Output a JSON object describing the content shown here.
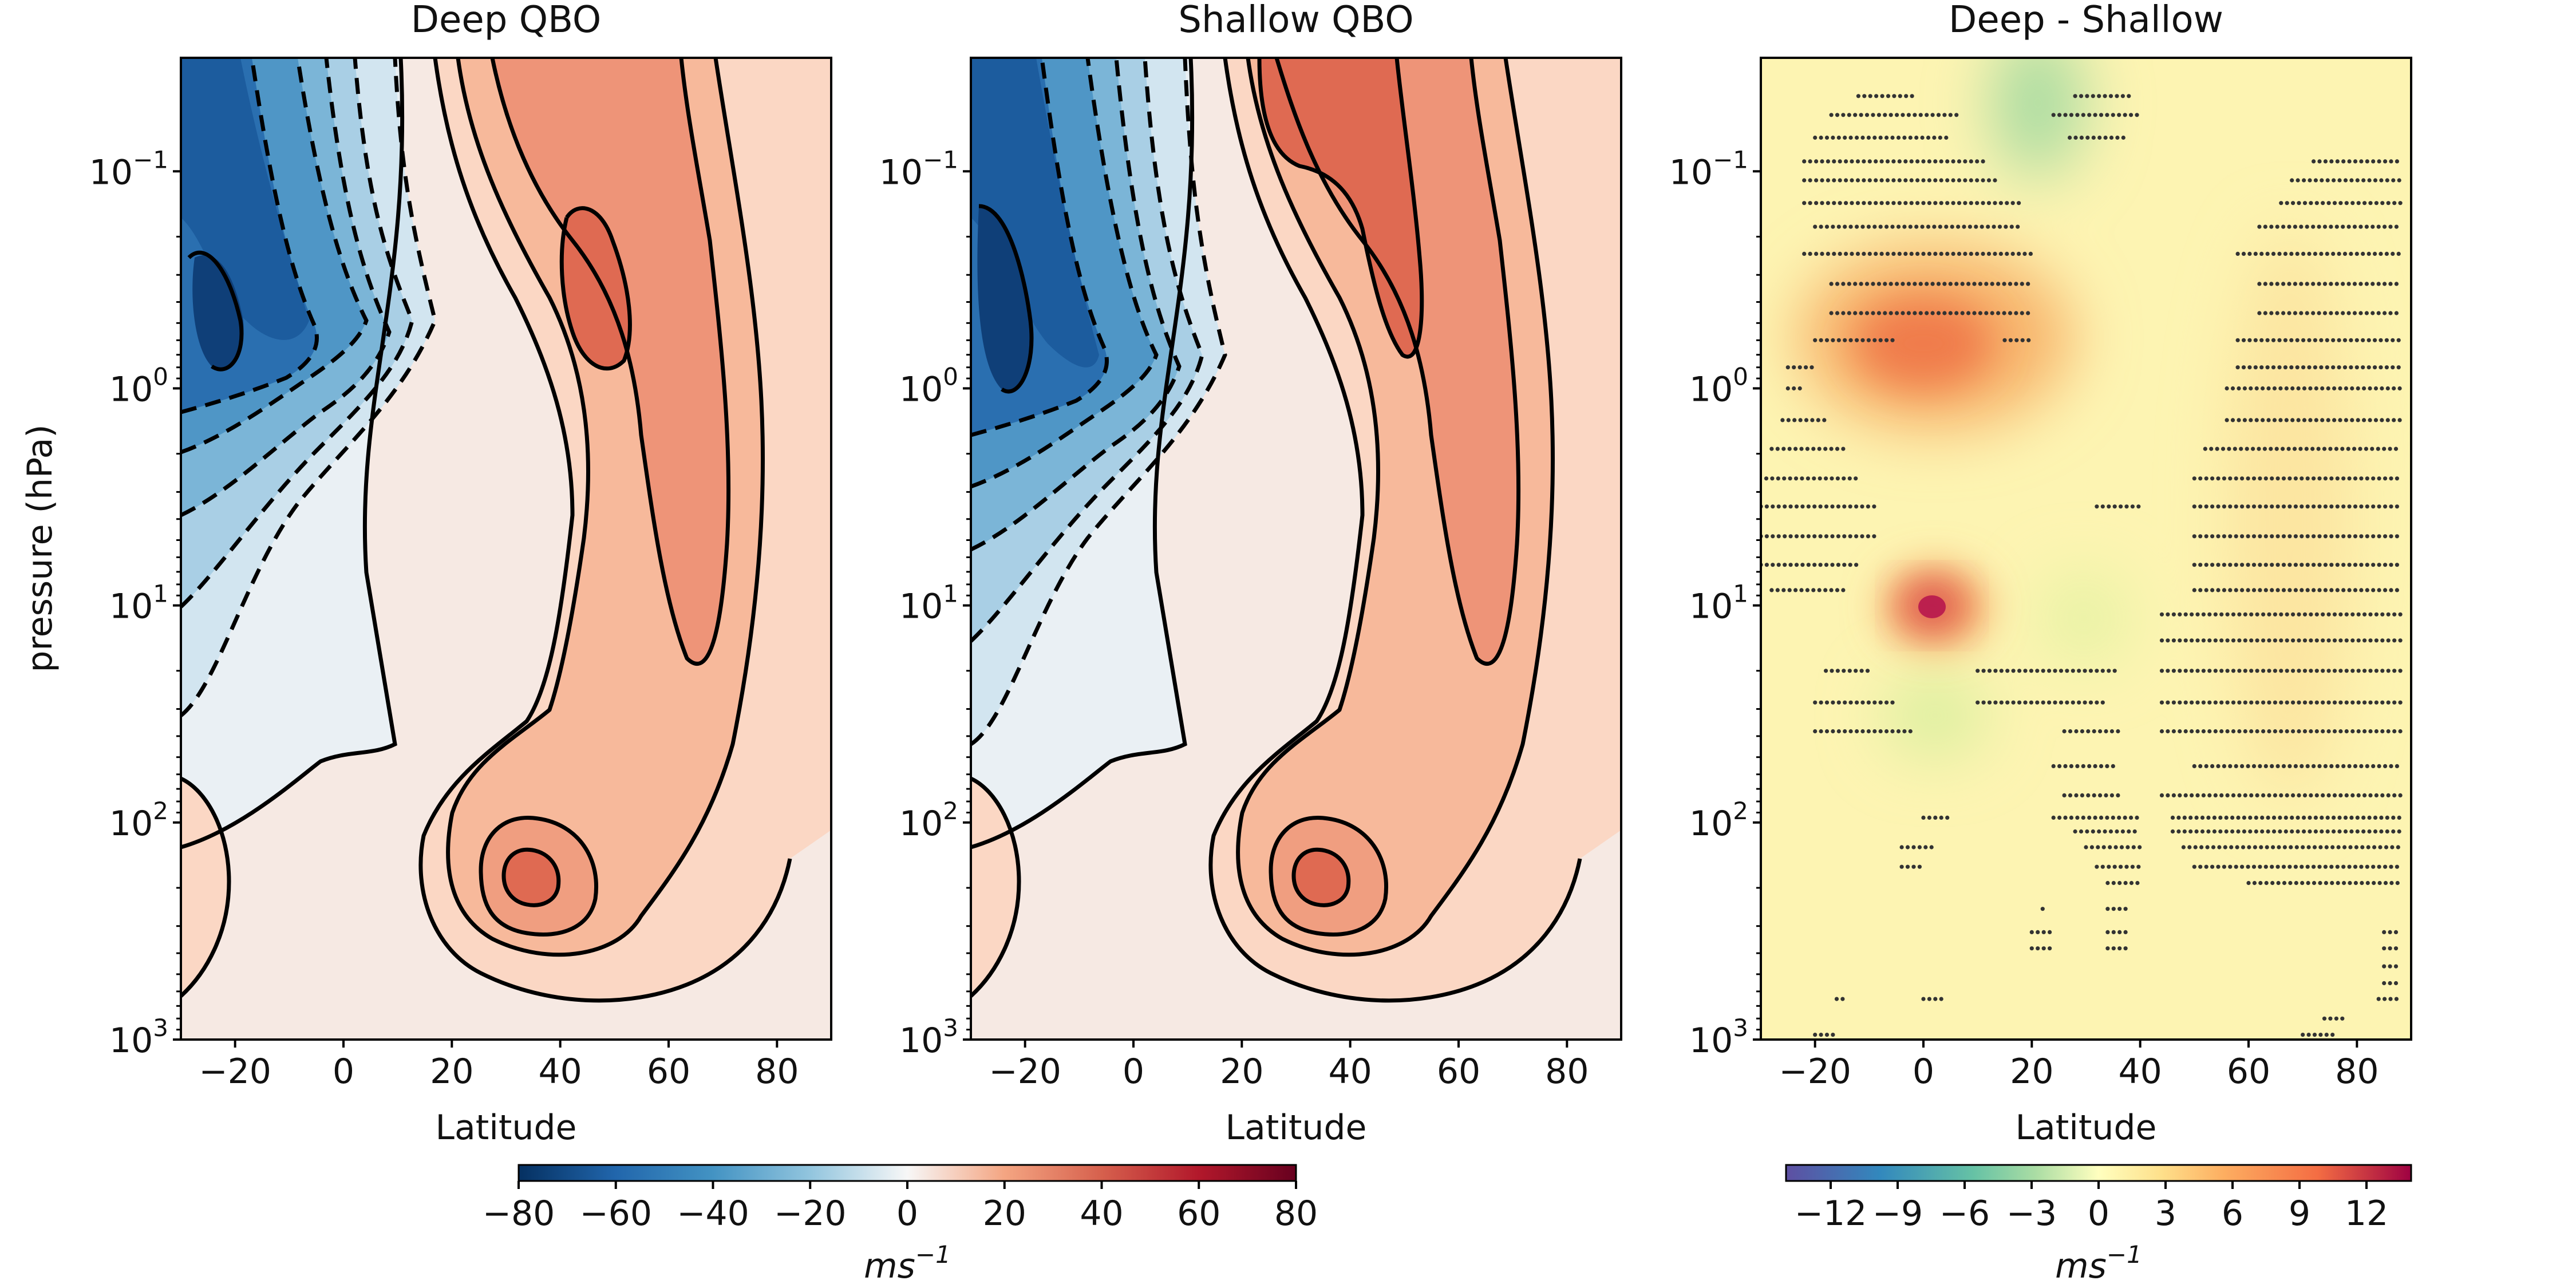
{
  "chart_data": [
    {
      "type": "heatmap",
      "title": "Deep QBO",
      "xlabel": "Latitude",
      "ylabel": "pressure (hPa)",
      "xlim": [
        -30,
        90
      ],
      "ylim": [
        1000,
        0.03
      ],
      "yscale": "log",
      "xticks": [
        "−20",
        "0",
        "20",
        "40",
        "60",
        "80"
      ],
      "yticks": [
        "10",
        "10",
        "10",
        "10",
        "10"
      ],
      "ytick_exponents": [
        "−1",
        "0",
        "1",
        "2",
        "3"
      ],
      "contour_levels": [
        -80,
        -70,
        -60,
        -50,
        -40,
        -30,
        -20,
        -10,
        0,
        10,
        20,
        30,
        40,
        50,
        60,
        70,
        80
      ],
      "field": {
        "description_units": "zonal mean zonal wind, m s-1",
        "westerly_jet": {
          "lat": 45,
          "p_hPa": 0.5,
          "max": 50
        },
        "easterly_jet": {
          "lat": -22,
          "p_hPa": 0.7,
          "min": -75
        },
        "subtropical_jet": {
          "lat": 31,
          "p_hPa": 180,
          "max": 32
        }
      }
    },
    {
      "type": "heatmap",
      "title": "Shallow QBO",
      "xlabel": "Latitude",
      "xlim": [
        -30,
        90
      ],
      "ylim": [
        1000,
        0.03
      ],
      "yscale": "log",
      "xticks": [
        "−20",
        "0",
        "20",
        "40",
        "60",
        "80"
      ],
      "yticks": [
        "10",
        "10",
        "10",
        "10",
        "10"
      ],
      "ytick_exponents": [
        "−1",
        "0",
        "1",
        "2",
        "3"
      ],
      "contour_levels": [
        -80,
        -70,
        -60,
        -50,
        -40,
        -30,
        -20,
        -10,
        0,
        10,
        20,
        30,
        40,
        50,
        60,
        70,
        80
      ],
      "field": {
        "westerly_jet": {
          "lat": 44,
          "p_hPa": 0.2,
          "max": 50
        },
        "easterly_jet": {
          "lat": -25,
          "p_hPa": 0.7,
          "min": -75
        },
        "subtropical_jet": {
          "lat": 31,
          "p_hPa": 180,
          "max": 32
        }
      }
    },
    {
      "type": "heatmap",
      "title": "Deep - Shallow",
      "xlabel": "Latitude",
      "xlim": [
        -30,
        90
      ],
      "ylim": [
        1000,
        0.03
      ],
      "yscale": "log",
      "xticks": [
        "−20",
        "0",
        "20",
        "40",
        "60",
        "80"
      ],
      "yticks": [
        "10",
        "10",
        "10",
        "10",
        "10"
      ],
      "ytick_exponents": [
        "−1",
        "0",
        "1",
        "2",
        "3"
      ],
      "field": {
        "positive_max_upper": {
          "lat": 0,
          "p_hPa": 0.6,
          "value": 9
        },
        "positive_max_lower": {
          "lat": 0,
          "p_hPa": 10,
          "value": 13
        },
        "negative_min_top": {
          "lat": 20,
          "p_hPa": 0.05,
          "value": -4
        }
      },
      "stippling": "dots mark statistically significant differences"
    }
  ],
  "colorbars": [
    {
      "ticks": [
        "−80",
        "−60",
        "−40",
        "−20",
        "0",
        "20",
        "40",
        "60",
        "80"
      ],
      "label": "ms",
      "label_exp": "−1",
      "range": [
        -80,
        80
      ],
      "colormap": "RdBu_r"
    },
    {
      "ticks": [
        "−12",
        "−9",
        "−6",
        "−3",
        "0",
        "3",
        "6",
        "9",
        "12"
      ],
      "label": "ms",
      "label_exp": "−1",
      "range": [
        -14,
        14
      ],
      "colormap": "Spectral_r"
    }
  ]
}
